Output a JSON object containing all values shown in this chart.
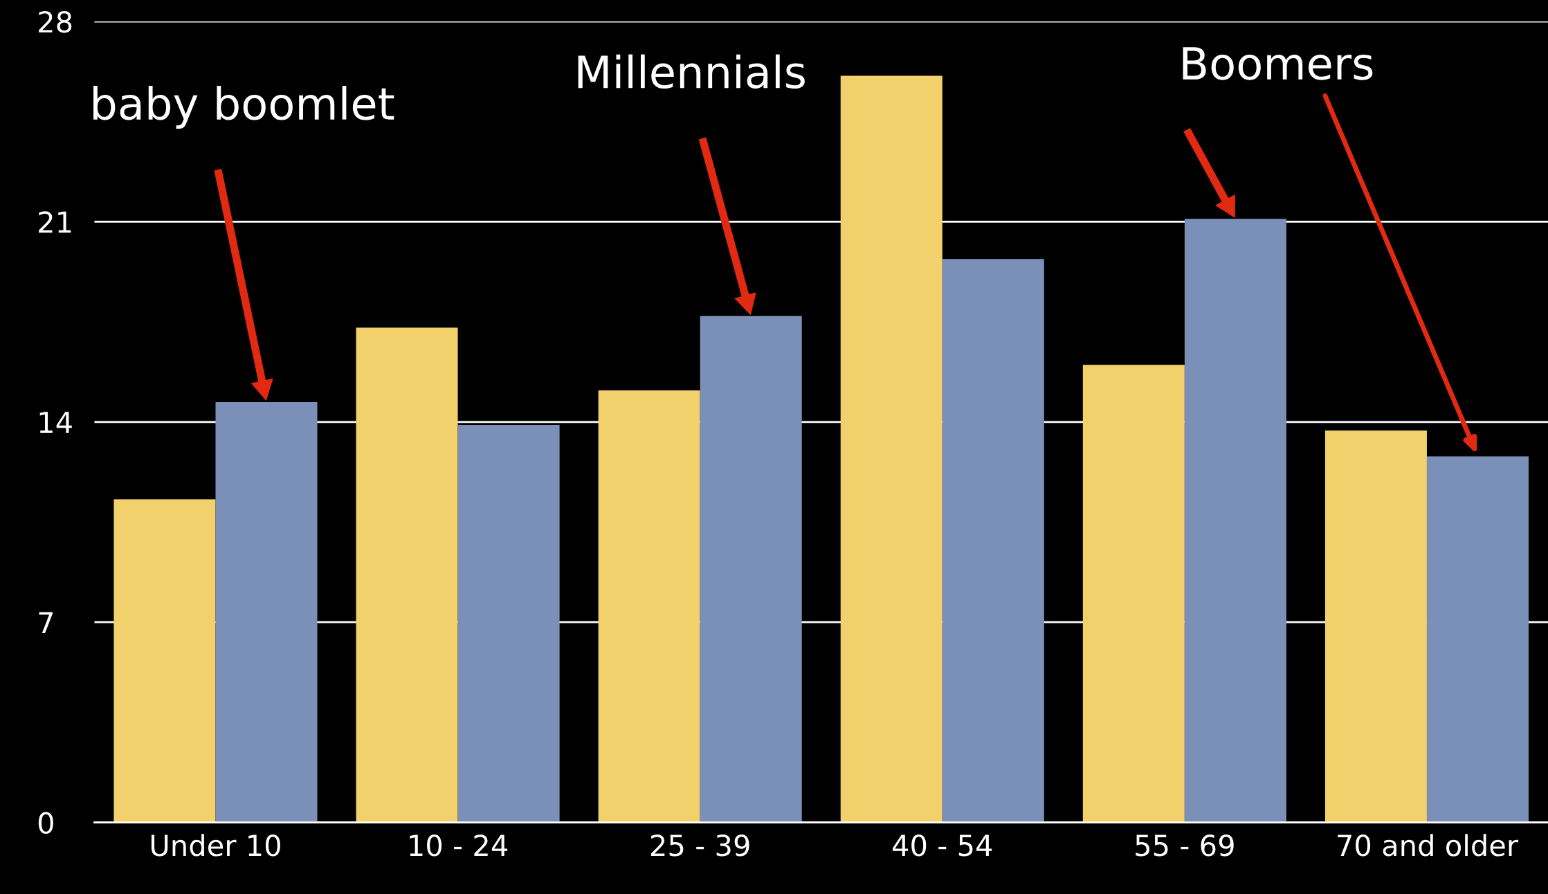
{
  "chart_data": {
    "type": "bar",
    "categories": [
      "Under 10",
      "10 - 24",
      "25 - 39",
      "40 - 54",
      "55 - 69",
      "70 and older"
    ],
    "series": [
      {
        "color": "#f2d06b",
        "values": [
          11.3,
          17.3,
          15.1,
          26.1,
          16.0,
          13.7
        ]
      },
      {
        "color": "#7a90b8",
        "values": [
          14.7,
          13.9,
          17.7,
          19.7,
          21.1,
          12.8
        ]
      }
    ],
    "ylim": [
      0,
      28
    ],
    "yticks": [
      0,
      7,
      14,
      21,
      28
    ],
    "grid": "y",
    "legend": false,
    "annotations": [
      "baby boomlet",
      "Millennials",
      "Boomers"
    ]
  }
}
